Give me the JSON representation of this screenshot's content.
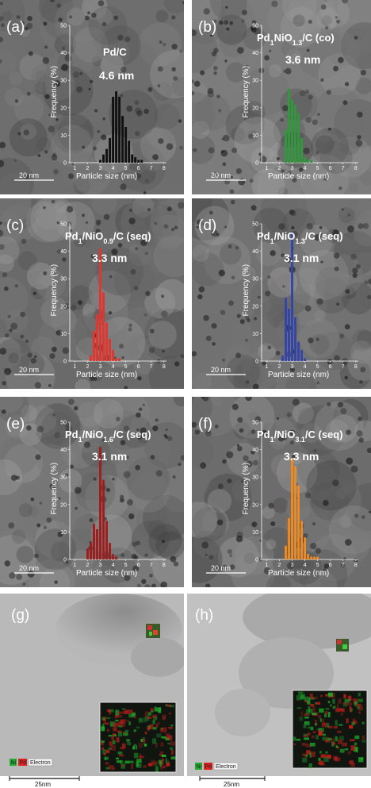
{
  "panels": [
    {
      "label": "(a)",
      "title_main": "Pd/C",
      "title_sub": "",
      "title_rest": "",
      "size": "4.6 nm",
      "scale": "20 nm",
      "color": "#111111",
      "bg": "#6e6e6e"
    },
    {
      "label": "(b)",
      "title_main": "Pd",
      "title_sub": "1",
      "title_rest": "NiO",
      "title_sub2": "1.3",
      "title_rest2": "/C (co)",
      "size": "3.6 nm",
      "scale": "20 nm",
      "color": "#2e9a3a",
      "bg": "#7c7c7c"
    },
    {
      "label": "(c)",
      "title_main": "Pd",
      "title_sub": "1",
      "title_rest": "/NiO",
      "title_sub2": "0.9",
      "title_rest2": "/C (seq)",
      "size": "3.3 nm",
      "scale": "20 nm",
      "color": "#e8322a",
      "bg": "#6a6a6a"
    },
    {
      "label": "(d)",
      "title_main": "Pd",
      "title_sub": "1",
      "title_rest": "/NiO",
      "title_sub2": "1.3",
      "title_rest2": "/C (seq)",
      "size": "3.1 nm",
      "scale": "20 nm",
      "color": "#3344aa",
      "bg": "#727272"
    },
    {
      "label": "(e)",
      "title_main": "Pd",
      "title_sub": "1",
      "title_rest": "/NiO",
      "title_sub2": "1.6",
      "title_rest2": "/C (seq)",
      "size": "3.1 nm",
      "scale": "20 nm",
      "color": "#a01c1c",
      "bg": "#777777"
    },
    {
      "label": "(f)",
      "title_main": "Pd",
      "title_sub": "1",
      "title_rest": "/NiO",
      "title_sub2": "3.1",
      "title_rest2": "/C (seq)",
      "size": "3.3 nm",
      "scale": "20 nm",
      "color": "#f08a1e",
      "bg": "#6c6c6c"
    }
  ],
  "axes": {
    "ylabel": "Frequency (%)",
    "xlabel": "Particle size (nm)",
    "yticks": [
      "0",
      "10",
      "20",
      "30",
      "40",
      "50"
    ],
    "xticks": [
      "1",
      "2",
      "3",
      "4",
      "5",
      "6",
      "7",
      "8"
    ]
  },
  "chart_data": [
    {
      "type": "bar",
      "panel": "(a)",
      "x": [
        3.0,
        3.25,
        3.5,
        3.75,
        4.0,
        4.25,
        4.5,
        4.75,
        5.0,
        5.25,
        5.5,
        5.75,
        6.0,
        6.25,
        6.5,
        6.75
      ],
      "values": [
        1,
        3,
        5,
        9,
        24,
        26,
        24,
        17,
        13,
        8,
        3,
        2,
        1,
        1,
        0,
        0
      ],
      "xlim": [
        1,
        8
      ],
      "ylim": [
        0,
        50
      ],
      "xlabel": "Particle size (nm)",
      "ylabel": "Frequency (%)"
    },
    {
      "type": "bar",
      "panel": "(b)",
      "x": [
        2.5,
        2.75,
        3.0,
        3.25,
        3.5,
        3.75,
        4.0,
        4.25,
        4.5,
        4.75,
        5.0,
        5.25,
        5.5
      ],
      "values": [
        12,
        27,
        23,
        21,
        18,
        9,
        2,
        1,
        1,
        0,
        0,
        0,
        0
      ],
      "xlim": [
        1,
        8
      ],
      "ylim": [
        0,
        50
      ],
      "xlabel": "Particle size (nm)",
      "ylabel": "Frequency (%)"
    },
    {
      "type": "bar",
      "panel": "(c)",
      "x": [
        2.25,
        2.5,
        2.75,
        3.0,
        3.25,
        3.5,
        3.75,
        4.0,
        4.25,
        4.5,
        4.75,
        5.0
      ],
      "values": [
        2,
        11,
        17,
        41,
        25,
        14,
        8,
        4,
        1,
        1,
        0,
        0
      ],
      "xlim": [
        1,
        8
      ],
      "ylim": [
        0,
        50
      ],
      "xlabel": "Particle size (nm)",
      "ylabel": "Frequency (%)"
    },
    {
      "type": "bar",
      "panel": "(d)",
      "x": [
        2.25,
        2.5,
        2.75,
        3.0,
        3.25,
        3.5,
        3.75,
        4.0
      ],
      "values": [
        2,
        23,
        19,
        47,
        16,
        7,
        4,
        1
      ],
      "xlim": [
        1,
        8
      ],
      "ylim": [
        0,
        50
      ],
      "xlabel": "Particle size (nm)",
      "ylabel": "Frequency (%)"
    },
    {
      "type": "bar",
      "panel": "(e)",
      "x": [
        2.0,
        2.25,
        2.5,
        2.75,
        3.0,
        3.25,
        3.5,
        3.75,
        4.0,
        4.25,
        4.5
      ],
      "values": [
        4,
        6,
        13,
        11,
        41,
        29,
        14,
        6,
        2,
        1,
        0
      ],
      "xlim": [
        1,
        8
      ],
      "ylim": [
        0,
        50
      ],
      "xlabel": "Particle size (nm)",
      "ylabel": "Frequency (%)"
    },
    {
      "type": "bar",
      "panel": "(f)",
      "x": [
        2.5,
        2.75,
        3.0,
        3.25,
        3.5,
        3.75,
        4.0,
        4.25,
        4.5,
        4.75,
        5.0,
        5.25
      ],
      "values": [
        5,
        15,
        37,
        34,
        27,
        14,
        8,
        2,
        1,
        1,
        1,
        0
      ],
      "xlim": [
        1,
        8
      ],
      "ylim": [
        0,
        50
      ],
      "xlabel": "Particle size (nm)",
      "ylabel": "Frequency (%)"
    }
  ],
  "maps": [
    {
      "label": "(g)",
      "legend": [
        "Ni",
        "Pd",
        "Electron"
      ],
      "scale": "25nm"
    },
    {
      "label": "(h)",
      "legend": [
        "Ni",
        "Pd",
        "Electron"
      ],
      "scale": "25nm"
    }
  ],
  "colors": {
    "ni": "#22aa33",
    "pd": "#dd2222"
  }
}
